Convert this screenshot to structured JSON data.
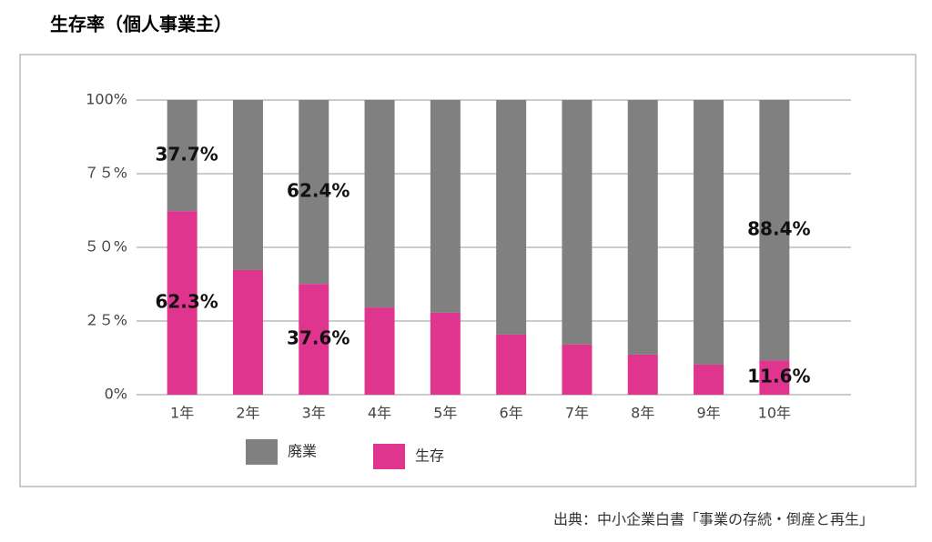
{
  "chart_data": {
    "type": "stacked_bar",
    "title": "生存率（個人事業主）",
    "source": "出典：中小企業白書「事業の存続・倒産と再生」",
    "categories": [
      "1年",
      "2年",
      "3年",
      "4年",
      "5年",
      "6年",
      "7年",
      "8年",
      "9年",
      "10年"
    ],
    "series": [
      {
        "name": "廃業",
        "color": "#808080",
        "values": [
          37.7,
          57.7,
          62.4,
          70.4,
          72.2,
          79.6,
          83.0,
          86.4,
          89.8,
          88.4
        ],
        "value_labels": [
          "37.7%",
          null,
          "62.4%",
          null,
          null,
          null,
          null,
          null,
          null,
          "88.4%"
        ]
      },
      {
        "name": "生存",
        "color": "#e0358f",
        "values": [
          62.3,
          42.3,
          37.6,
          29.6,
          27.8,
          20.4,
          17.0,
          13.6,
          10.2,
          11.6
        ],
        "value_labels": [
          "62.3%",
          null,
          "37.6%",
          null,
          null,
          null,
          null,
          null,
          null,
          "11.6%"
        ]
      }
    ],
    "ylim": [
      0,
      100
    ],
    "yticks": [
      {
        "value": 0,
        "label": "0%"
      },
      {
        "value": 25,
        "label": "２５%"
      },
      {
        "value": 50,
        "label": "５０%"
      },
      {
        "value": 75,
        "label": "７５%"
      },
      {
        "value": 100,
        "label": "100%"
      }
    ],
    "grid": true
  }
}
